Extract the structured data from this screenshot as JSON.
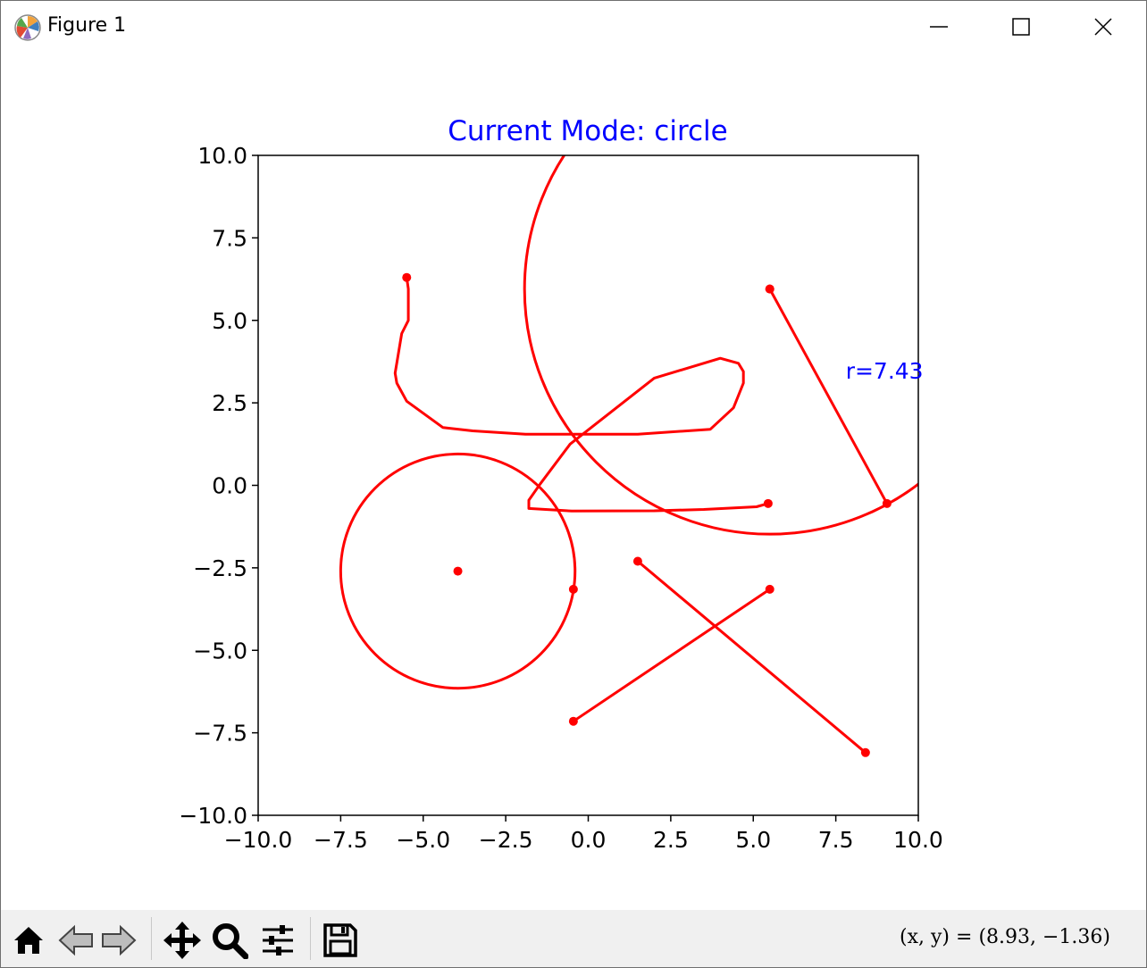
{
  "window": {
    "title": "Figure 1",
    "controls": [
      "minimize",
      "maximize",
      "close"
    ]
  },
  "figure": {
    "title": "Current Mode: circle",
    "title_color": "#0000ff",
    "line_color": "#ff0000",
    "annotation": {
      "text": "r=7.43",
      "x": 7.8,
      "y": 3.45,
      "color": "#0000ff"
    }
  },
  "chart_data": {
    "type": "line",
    "title": "Current Mode: circle",
    "xlim": [
      -10,
      10
    ],
    "ylim": [
      -10,
      10
    ],
    "xticks": [
      "−10.0",
      "−7.5",
      "−5.0",
      "−2.5",
      "0.0",
      "2.5",
      "5.0",
      "7.5",
      "10.0"
    ],
    "yticks": [
      "10.0",
      "7.5",
      "5.0",
      "2.5",
      "0.0",
      "−2.5",
      "−5.0",
      "−7.5",
      "−10.0"
    ],
    "xtick_values": [
      -10,
      -7.5,
      -5,
      -2.5,
      0,
      2.5,
      5,
      7.5,
      10
    ],
    "ytick_values": [
      10,
      7.5,
      5,
      2.5,
      0,
      -2.5,
      -5,
      -7.5,
      -10
    ],
    "grid": false,
    "freehand": {
      "points": [
        [
          -5.5,
          6.3
        ],
        [
          -5.45,
          5.95
        ],
        [
          -5.45,
          5.5
        ],
        [
          -5.45,
          5.0
        ],
        [
          -5.65,
          4.6
        ],
        [
          -5.75,
          4.0
        ],
        [
          -5.85,
          3.4
        ],
        [
          -5.8,
          3.1
        ],
        [
          -5.5,
          2.55
        ],
        [
          -4.95,
          2.15
        ],
        [
          -4.4,
          1.75
        ],
        [
          -3.5,
          1.65
        ],
        [
          -1.9,
          1.55
        ],
        [
          -0.3,
          1.55
        ],
        [
          1.5,
          1.55
        ],
        [
          3.7,
          1.7
        ],
        [
          4.4,
          2.35
        ],
        [
          4.7,
          3.1
        ],
        [
          4.7,
          3.45
        ],
        [
          4.55,
          3.7
        ],
        [
          4.0,
          3.85
        ],
        [
          2.0,
          3.25
        ],
        [
          -0.55,
          1.25
        ],
        [
          -1.45,
          0.05
        ],
        [
          -1.8,
          -0.45
        ],
        [
          -1.8,
          -0.7
        ],
        [
          -0.5,
          -0.78
        ],
        [
          2.0,
          -0.77
        ],
        [
          3.5,
          -0.73
        ],
        [
          5.1,
          -0.65
        ],
        [
          5.45,
          -0.55
        ]
      ],
      "end_marker": [
        5.45,
        -0.55
      ]
    },
    "segments": [
      {
        "from": [
          5.5,
          5.95
        ],
        "to": [
          9.05,
          -0.55
        ]
      },
      {
        "from": [
          1.5,
          -2.3
        ],
        "to": [
          8.4,
          -8.1
        ]
      },
      {
        "from": [
          5.5,
          -3.15
        ],
        "to": [
          -0.45,
          -7.15
        ]
      }
    ],
    "circles": [
      {
        "center": [
          -3.95,
          -2.6
        ],
        "radius": 3.55,
        "edge_marker": [
          -0.45,
          -3.15
        ]
      },
      {
        "center": [
          5.5,
          5.95
        ],
        "radius": 7.43
      }
    ]
  },
  "toolbar": {
    "buttons": [
      {
        "name": "home-button",
        "icon": "home-icon",
        "interactive": true
      },
      {
        "name": "back-button",
        "icon": "back-arrow-icon",
        "interactive": true
      },
      {
        "name": "forward-button",
        "icon": "forward-arrow-icon",
        "interactive": true
      },
      {
        "name": "pan-button",
        "icon": "move-icon",
        "interactive": true
      },
      {
        "name": "zoom-button",
        "icon": "magnifier-icon",
        "interactive": true
      },
      {
        "name": "configure-subplots-button",
        "icon": "sliders-icon",
        "interactive": true
      },
      {
        "name": "save-button",
        "icon": "floppy-disk-icon",
        "interactive": true
      }
    ],
    "coords_text": "(x,  y) = (8.93,  −1.36)"
  }
}
